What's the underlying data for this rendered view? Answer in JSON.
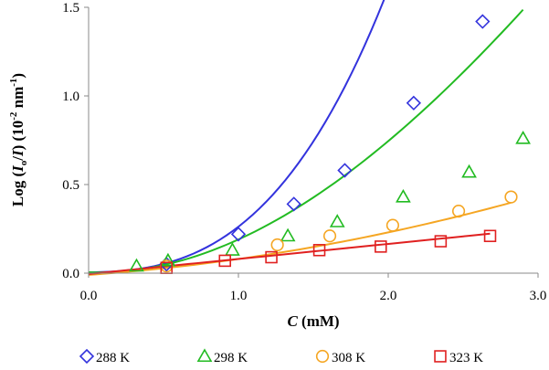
{
  "chart_data": {
    "type": "scatter",
    "title": "",
    "xlabel": {
      "var": "C",
      "unit": " (mM)"
    },
    "ylabel": {
      "prefix": "Log (",
      "i0": "I",
      "sub0": "o",
      "slash": "/",
      "i": "I",
      "close": ")",
      "unit_open": " (10",
      "sup1": "-2",
      "unit_mid": " nm",
      "sup2": "-1",
      "unit_close": ")"
    },
    "xlim": [
      0,
      3.0
    ],
    "ylim": [
      0,
      1.5
    ],
    "xticks": [
      0,
      1,
      2,
      3
    ],
    "xtick_labels": [
      "0.0",
      "1.0",
      "2.0",
      "3.0"
    ],
    "yticks": [
      0,
      0.5,
      1.0,
      1.5
    ],
    "ytick_labels": [
      "0.0",
      "0.5",
      "1.0",
      "1.5"
    ],
    "grid": false,
    "legend_position": "bottom",
    "series": [
      {
        "name": "288 K",
        "marker": "diamond",
        "color": "#3333dd",
        "x": [
          0.52,
          1.0,
          1.37,
          1.71,
          2.17,
          2.63
        ],
        "y": [
          0.05,
          0.22,
          0.39,
          0.58,
          0.96,
          1.42
        ],
        "fit": [
          0.005,
          0.003,
          0.11,
          0.144
        ]
      },
      {
        "name": "298 K",
        "marker": "triangle",
        "color": "#22bb22",
        "x": [
          0.32,
          0.53,
          0.96,
          1.33,
          1.66,
          2.1,
          2.54,
          2.9
        ],
        "y": [
          0.04,
          0.07,
          0.13,
          0.21,
          0.29,
          0.43,
          0.57,
          0.76
        ],
        "fit": [
          0.005,
          -0.03,
          0.23,
          -0.015
        ]
      },
      {
        "name": "308 K",
        "marker": "circle",
        "color": "#f5a623",
        "x": [
          0.52,
          1.26,
          1.61,
          2.03,
          2.47,
          2.82
        ],
        "y": [
          0.04,
          0.16,
          0.21,
          0.27,
          0.35,
          0.43
        ],
        "fit": [
          -0.01,
          0.06,
          0.03,
          0
        ]
      },
      {
        "name": "323 K",
        "marker": "square",
        "color": "#e02020",
        "x": [
          0.52,
          0.91,
          1.22,
          1.54,
          1.95,
          2.35,
          2.68
        ],
        "y": [
          0.03,
          0.07,
          0.09,
          0.13,
          0.15,
          0.18,
          0.21
        ],
        "fit": [
          -0.005,
          0.085,
          0,
          0
        ]
      }
    ]
  }
}
